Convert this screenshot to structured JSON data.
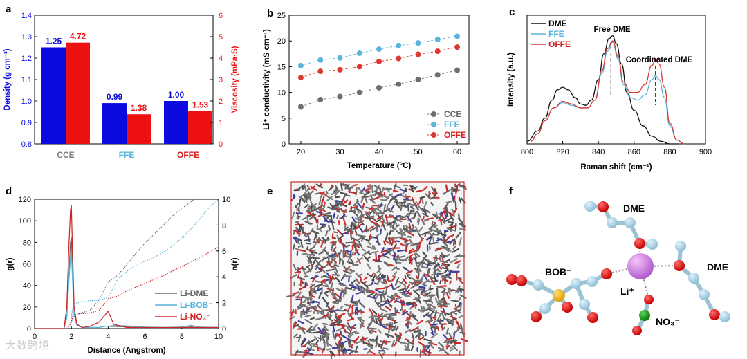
{
  "panels": {
    "a": "a",
    "b": "b",
    "c": "c",
    "d": "d",
    "e": "e",
    "f": "f"
  },
  "chart_data": [
    {
      "id": "a",
      "type": "bar",
      "categories": [
        "CCE",
        "FFE",
        "OFFE"
      ],
      "category_colors": [
        "#7f7f7f",
        "#5ab4dc",
        "#d81e1e"
      ],
      "series": [
        {
          "name": "Density",
          "axis": "left",
          "color": "#0b0be0",
          "values": [
            1.25,
            0.99,
            1.0
          ],
          "labels": [
            "1.25",
            "0.99",
            "1.00"
          ]
        },
        {
          "name": "Viscosity",
          "axis": "right",
          "color": "#ee1111",
          "values": [
            4.72,
            1.38,
            1.53
          ],
          "labels": [
            "4.72",
            "1.38",
            "1.53"
          ]
        }
      ],
      "ylabel": "Density (g cm⁻³)",
      "ylabel_right": "Viscosity (mPa·S)",
      "ylim": [
        0.8,
        1.4
      ],
      "yticks": [
        "0.8",
        "0.9",
        "1.0",
        "1.1",
        "1.2",
        "1.3",
        "1.4"
      ],
      "ylim_right": [
        0,
        6
      ],
      "yticks_right": [
        "0",
        "1",
        "2",
        "3",
        "4",
        "5",
        "6"
      ]
    },
    {
      "id": "b",
      "type": "scatter",
      "x": [
        20,
        25,
        30,
        35,
        40,
        45,
        50,
        55,
        60
      ],
      "series": [
        {
          "name": "CCE",
          "color": "#6e6e6e",
          "values": [
            7.2,
            8.6,
            9.2,
            10.0,
            10.9,
            11.6,
            12.5,
            13.4,
            14.3
          ]
        },
        {
          "name": "FFE",
          "color": "#5ab4dc",
          "values": [
            15.2,
            16.3,
            16.7,
            17.6,
            18.4,
            19.1,
            19.6,
            20.3,
            20.9
          ]
        },
        {
          "name": "OFFE",
          "color": "#d83a30",
          "values": [
            12.9,
            14.1,
            14.4,
            15.0,
            16.0,
            16.6,
            17.4,
            18.0,
            18.8
          ]
        }
      ],
      "xlabel": "Temperature (°C)",
      "ylabel": "Li⁺ conductivity (mS cm⁻¹)",
      "xlim": [
        17,
        63
      ],
      "ylim": [
        0,
        25
      ],
      "xticks": [
        "20",
        "30",
        "40",
        "50",
        "60"
      ],
      "yticks": [
        "0",
        "5",
        "10",
        "15",
        "20",
        "25"
      ],
      "legend": "bottom-right"
    },
    {
      "id": "c",
      "type": "line",
      "series": [
        {
          "name": "DME",
          "color": "#111111",
          "x": [
            800,
            806,
            810,
            814,
            817,
            820,
            823,
            827,
            830,
            833,
            836,
            840,
            843,
            846,
            848,
            850,
            853,
            856,
            860,
            865,
            870,
            875,
            880,
            885
          ],
          "values": [
            0.02,
            0.1,
            0.2,
            0.34,
            0.42,
            0.44,
            0.42,
            0.36,
            0.31,
            0.3,
            0.34,
            0.5,
            0.7,
            0.82,
            0.84,
            0.78,
            0.62,
            0.4,
            0.26,
            0.14,
            0.06,
            0.02,
            0.0,
            0.0
          ]
        },
        {
          "name": "FFE",
          "color": "#5ab4dc",
          "x": [
            802,
            806,
            810,
            815,
            820,
            825,
            830,
            834,
            838,
            842,
            845,
            848,
            851,
            854,
            858,
            862,
            866,
            870,
            872,
            874,
            877,
            880,
            884,
            888
          ],
          "values": [
            0.02,
            0.08,
            0.18,
            0.28,
            0.32,
            0.3,
            0.28,
            0.28,
            0.34,
            0.55,
            0.72,
            0.79,
            0.66,
            0.46,
            0.36,
            0.34,
            0.38,
            0.5,
            0.53,
            0.5,
            0.36,
            0.14,
            0.03,
            0.0
          ]
        },
        {
          "name": "OFFE",
          "color": "#d83a30",
          "x": [
            802,
            806,
            810,
            815,
            820,
            825,
            830,
            834,
            838,
            842,
            845,
            848,
            851,
            854,
            858,
            862,
            866,
            870,
            872,
            874,
            877,
            880,
            884,
            888
          ],
          "values": [
            0.02,
            0.08,
            0.18,
            0.28,
            0.33,
            0.31,
            0.28,
            0.28,
            0.34,
            0.57,
            0.74,
            0.8,
            0.68,
            0.48,
            0.4,
            0.4,
            0.46,
            0.61,
            0.66,
            0.62,
            0.44,
            0.16,
            0.03,
            0.0
          ]
        }
      ],
      "xlabel": "Raman shift (cm⁻¹)",
      "ylabel": "Intensity (a.u.)",
      "xlim": [
        800,
        900
      ],
      "ylim": [
        0,
        1.0
      ],
      "xticks": [
        "800",
        "820",
        "840",
        "860",
        "880",
        "900"
      ],
      "annotations": [
        "Free DME",
        "Coordinated DME"
      ],
      "annotation_x": [
        847,
        872
      ],
      "legend": "top-left"
    },
    {
      "id": "d",
      "type": "line",
      "x_grid": [
        0,
        1.6,
        1.75,
        1.85,
        1.95,
        2.0,
        2.05,
        2.15,
        2.3,
        2.6,
        3.0,
        3.5,
        3.8,
        4.0,
        4.3,
        5.0,
        6.0,
        7.0,
        8.0,
        8.5,
        9.0,
        10.0
      ],
      "series": [
        {
          "name": "Li-DME",
          "color": "#666666",
          "style": "solid",
          "values": [
            0,
            0,
            10,
            45,
            80,
            84,
            60,
            15,
            3,
            1,
            1,
            1,
            2,
            2,
            2,
            1.5,
            1,
            1,
            1,
            1.5,
            1,
            1
          ]
        },
        {
          "name": "Li-BOB⁻",
          "color": "#5ab4dc",
          "style": "solid",
          "values": [
            0,
            0,
            10,
            40,
            66,
            70,
            50,
            12,
            3,
            1,
            1,
            1,
            2,
            2,
            3,
            2.5,
            1.5,
            1,
            1.5,
            3,
            1.5,
            1
          ]
        },
        {
          "name": "Li-NO₃⁻",
          "color": "#cc2222",
          "style": "solid",
          "values": [
            0,
            0,
            20,
            70,
            110,
            114,
            80,
            20,
            4,
            1,
            2,
            6,
            12,
            16,
            4,
            1,
            1,
            1,
            1,
            1,
            1,
            1
          ]
        },
        {
          "name": "n(r) Li-DME",
          "axis": "right",
          "color": "#666666",
          "style": "dotted",
          "x": [
            0,
            1.8,
            1.95,
            2.1,
            2.5,
            3.0,
            3.5,
            4.0,
            4.5,
            5.0,
            5.5,
            6.0,
            6.5,
            7.0,
            7.5,
            8.0,
            8.5,
            9.0,
            9.3
          ],
          "values": [
            0,
            0,
            0.3,
            0.9,
            1.2,
            1.4,
            2.2,
            3.6,
            4.1,
            4.9,
            5.8,
            6.6,
            7.3,
            8.0,
            8.7,
            9.3,
            9.8,
            10.4,
            10.8
          ]
        },
        {
          "name": "n(r) Li-BOB⁻",
          "axis": "right",
          "color": "#5ab4dc",
          "style": "dotted",
          "x": [
            0,
            1.8,
            1.95,
            2.1,
            2.5,
            3.0,
            3.5,
            4.0,
            4.5,
            5.0,
            5.5,
            6.0,
            6.5,
            7.0,
            7.5,
            8.0,
            8.5,
            9.0,
            9.5,
            10.0
          ],
          "values": [
            0,
            0,
            0.5,
            1.8,
            2.1,
            2.15,
            2.2,
            2.4,
            3.8,
            4.4,
            4.9,
            5.2,
            5.5,
            5.9,
            6.4,
            7.0,
            7.7,
            8.5,
            9.4,
            10.0
          ]
        },
        {
          "name": "n(r) Li-NO₃⁻",
          "axis": "right",
          "color": "#cc2222",
          "style": "dotted",
          "x": [
            0,
            1.8,
            1.95,
            2.1,
            2.5,
            3.0,
            3.5,
            4.0,
            4.5,
            5.0,
            6.0,
            7.0,
            8.0,
            9.0,
            10.0
          ],
          "values": [
            0,
            0,
            0.4,
            1.1,
            1.15,
            1.2,
            1.4,
            2.3,
            2.5,
            2.9,
            3.5,
            4.1,
            4.8,
            5.5,
            6.3
          ]
        }
      ],
      "xlabel": "Distance (Angstrom)",
      "ylabel": "g(r)",
      "ylabel_right": "n(r)",
      "xlim": [
        0,
        10
      ],
      "ylim": [
        0,
        120
      ],
      "ylim_right": [
        0,
        10
      ],
      "xticks": [
        "0",
        "2",
        "4",
        "6",
        "8",
        "10"
      ],
      "yticks": [
        "0",
        "20",
        "40",
        "60",
        "80",
        "100",
        "120"
      ],
      "yticks_right": [
        "0",
        "2",
        "4",
        "6",
        "8",
        "10"
      ],
      "legend": "bottom-right"
    }
  ],
  "panel_f": {
    "labels": [
      "DME",
      "DME",
      "BOB⁻",
      "Li⁺",
      "NO₃⁻"
    ]
  },
  "watermark": "大数跨境"
}
